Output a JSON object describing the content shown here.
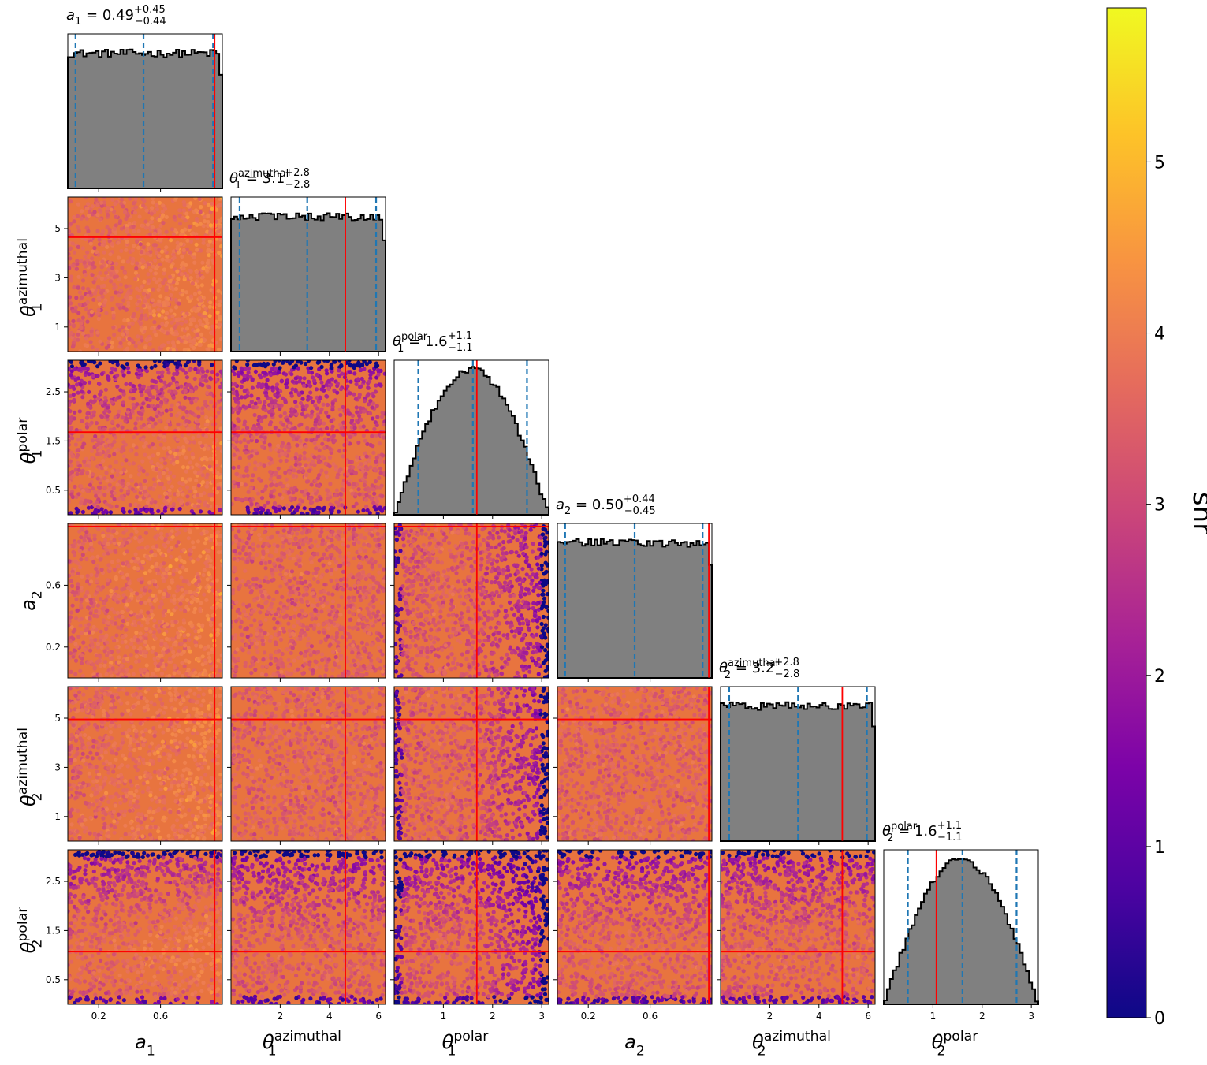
{
  "chart_data": {
    "type": "corner",
    "parameters": [
      {
        "key": "a1",
        "base": "a",
        "sub": "1",
        "sup": "",
        "range": [
          0,
          1
        ],
        "ticks": [
          0.2,
          0.6
        ],
        "tick_labels": [
          "0.2",
          "0.6"
        ],
        "true_value": 0.95,
        "title": {
          "median": "0.49",
          "plus": "+0.45",
          "minus": "−0.44"
        },
        "quantiles": [
          0.05,
          0.49,
          0.94
        ],
        "hist_shape": "flat"
      },
      {
        "key": "theta1_az",
        "base": "θ",
        "sub": "1",
        "sup": "azimuthal",
        "range": [
          0,
          6.283
        ],
        "ticks": [
          1,
          3,
          5
        ],
        "tick_labels": [
          "1",
          "3",
          "5"
        ],
        "xticks": [
          2,
          4,
          6
        ],
        "xtick_labels": [
          "2",
          "4",
          "6"
        ],
        "true_value": 4.65,
        "title": {
          "median": "3.1",
          "plus": "+2.8",
          "minus": "−2.8"
        },
        "quantiles": [
          0.35,
          3.1,
          5.9
        ],
        "hist_shape": "flat"
      },
      {
        "key": "theta1_pol",
        "base": "θ",
        "sub": "1",
        "sup": "polar",
        "range": [
          0,
          3.1416
        ],
        "ticks": [
          0.5,
          1.5,
          2.5
        ],
        "tick_labels": [
          "0.5",
          "1.5",
          "2.5"
        ],
        "xticks": [
          1,
          2,
          3
        ],
        "xtick_labels": [
          "1",
          "2",
          "3"
        ],
        "true_value": 1.68,
        "title": {
          "median": "1.6",
          "plus": "+1.1",
          "minus": "−1.1"
        },
        "quantiles": [
          0.49,
          1.6,
          2.7
        ],
        "hist_shape": "sine"
      },
      {
        "key": "a2",
        "base": "a",
        "sub": "2",
        "sup": "",
        "range": [
          0,
          1
        ],
        "ticks": [
          0.2,
          0.6
        ],
        "tick_labels": [
          "0.2",
          "0.6"
        ],
        "true_value": 0.98,
        "title": {
          "median": "0.50",
          "plus": "+0.44",
          "minus": "−0.45"
        },
        "quantiles": [
          0.05,
          0.5,
          0.94
        ],
        "hist_shape": "flat"
      },
      {
        "key": "theta2_az",
        "base": "θ",
        "sub": "2",
        "sup": "azimuthal",
        "range": [
          0,
          6.283
        ],
        "ticks": [
          1,
          3,
          5
        ],
        "tick_labels": [
          "1",
          "3",
          "5"
        ],
        "xticks": [
          2,
          4,
          6
        ],
        "xtick_labels": [
          "2",
          "4",
          "6"
        ],
        "true_value": 4.95,
        "title": {
          "median": "3.2",
          "plus": "+2.8",
          "minus": "−2.8"
        },
        "quantiles": [
          0.35,
          3.15,
          5.95
        ],
        "hist_shape": "flat"
      },
      {
        "key": "theta2_pol",
        "base": "θ",
        "sub": "2",
        "sup": "polar",
        "range": [
          0,
          3.1416
        ],
        "ticks": [
          0.5,
          1.5,
          2.5
        ],
        "tick_labels": [
          "0.5",
          "1.5",
          "2.5"
        ],
        "xticks": [
          1,
          2,
          3
        ],
        "xtick_labels": [
          "1",
          "2",
          "3"
        ],
        "true_value": 1.07,
        "title": {
          "median": "1.6",
          "plus": "+1.1",
          "minus": "−1.1"
        },
        "quantiles": [
          0.49,
          1.6,
          2.7
        ],
        "hist_shape": "sine"
      }
    ],
    "colorbar": {
      "label": "snr",
      "range": [
        0,
        5.9
      ],
      "ticks": [
        0,
        1,
        2,
        3,
        4,
        5
      ],
      "tick_labels": [
        "0",
        "1",
        "2",
        "3",
        "4",
        "5"
      ],
      "colormap": "plasma"
    },
    "colors": {
      "hist_fill": "#808080",
      "hist_edge": "#000000",
      "quantile_line": "#1f77b4",
      "truth_line": "#ff0000"
    },
    "bins": 50
  }
}
